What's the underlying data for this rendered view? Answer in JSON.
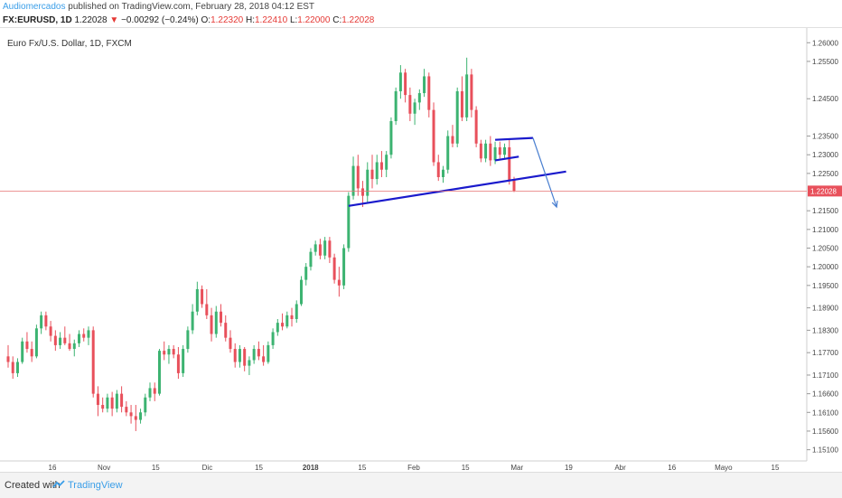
{
  "header": {
    "author": "Audiomercados",
    "published": "published on TradingView.com, February 28, 2018 04:12 EST",
    "symbol": "FX:EURUSD, 1D",
    "last": "1.22028",
    "arrow": "▼",
    "change": "−0.00292 (−0.24%)",
    "o_label": "O:",
    "o_val": "1.22320",
    "h_label": "H:",
    "h_val": "1.22410",
    "l_label": "L:",
    "l_val": "1.22000",
    "c_label": "C:",
    "c_val": "1.22028"
  },
  "footer": {
    "created": "Created with",
    "brand": "TradingView"
  },
  "colors": {
    "up": "#3cb371",
    "down": "#e8505b",
    "trend": "#1a1acc",
    "projection": "#4a7fd0",
    "price_line": "#e57373",
    "label_bg": "#e8505b"
  },
  "chart_data": {
    "type": "candlestick",
    "title": "Euro Fx/U.S. Dollar, 1D, FXCM",
    "ylim": [
      1.148,
      1.262
    ],
    "y_ticks": [
      "1.26000",
      "1.25500",
      "1.24500",
      "1.23500",
      "1.23000",
      "1.22500",
      "1.21500",
      "1.21000",
      "1.20500",
      "1.20000",
      "1.19500",
      "1.18900",
      "1.18300",
      "1.17700",
      "1.17100",
      "1.16600",
      "1.16100",
      "1.15600",
      "1.15100"
    ],
    "x_ticks": [
      "16",
      "Nov",
      "15",
      "Dic",
      "15",
      "2018",
      "15",
      "Feb",
      "15",
      "Mar",
      "19",
      "Abr",
      "16",
      "Mayo",
      "15"
    ],
    "last_price": "1.22028",
    "last_price_value": 1.22028,
    "candles": [
      [
        1.176,
        1.179,
        1.173,
        1.1745
      ],
      [
        1.1745,
        1.176,
        1.17,
        1.1715
      ],
      [
        1.1715,
        1.1755,
        1.1705,
        1.1745
      ],
      [
        1.1745,
        1.181,
        1.174,
        1.18
      ],
      [
        1.18,
        1.1825,
        1.177,
        1.178
      ],
      [
        1.178,
        1.18,
        1.1745,
        1.176
      ],
      [
        1.176,
        1.1845,
        1.1755,
        1.1835
      ],
      [
        1.1835,
        1.188,
        1.182,
        1.187
      ],
      [
        1.187,
        1.188,
        1.183,
        1.184
      ],
      [
        1.184,
        1.1855,
        1.18,
        1.1815
      ],
      [
        1.1815,
        1.183,
        1.1775,
        1.179
      ],
      [
        1.179,
        1.1825,
        1.178,
        1.181
      ],
      [
        1.181,
        1.184,
        1.179,
        1.1795
      ],
      [
        1.1795,
        1.182,
        1.1775,
        1.178
      ],
      [
        1.178,
        1.1805,
        1.176,
        1.1795
      ],
      [
        1.1795,
        1.183,
        1.1785,
        1.182
      ],
      [
        1.182,
        1.1835,
        1.18,
        1.181
      ],
      [
        1.181,
        1.184,
        1.179,
        1.183
      ],
      [
        1.183,
        1.184,
        1.165,
        1.166
      ],
      [
        1.166,
        1.168,
        1.16,
        1.163
      ],
      [
        1.163,
        1.165,
        1.161,
        1.162
      ],
      [
        1.162,
        1.166,
        1.161,
        1.165
      ],
      [
        1.165,
        1.1665,
        1.16,
        1.162
      ],
      [
        1.162,
        1.167,
        1.161,
        1.166
      ],
      [
        1.166,
        1.168,
        1.161,
        1.1625
      ],
      [
        1.1625,
        1.164,
        1.16,
        1.161
      ],
      [
        1.161,
        1.163,
        1.158,
        1.16
      ],
      [
        1.16,
        1.163,
        1.156,
        1.159
      ],
      [
        1.159,
        1.162,
        1.158,
        1.161
      ],
      [
        1.161,
        1.166,
        1.16,
        1.165
      ],
      [
        1.165,
        1.169,
        1.164,
        1.1675
      ],
      [
        1.1675,
        1.169,
        1.164,
        1.166
      ],
      [
        1.166,
        1.178,
        1.1655,
        1.1775
      ],
      [
        1.1775,
        1.18,
        1.175,
        1.1765
      ],
      [
        1.1765,
        1.179,
        1.174,
        1.178
      ],
      [
        1.178,
        1.179,
        1.1755,
        1.1765
      ],
      [
        1.1765,
        1.1785,
        1.17,
        1.1715
      ],
      [
        1.1715,
        1.179,
        1.1705,
        1.178
      ],
      [
        1.178,
        1.184,
        1.177,
        1.183
      ],
      [
        1.183,
        1.19,
        1.182,
        1.188
      ],
      [
        1.188,
        1.196,
        1.187,
        1.194
      ],
      [
        1.194,
        1.195,
        1.189,
        1.19
      ],
      [
        1.19,
        1.194,
        1.186,
        1.187
      ],
      [
        1.187,
        1.189,
        1.18,
        1.182
      ],
      [
        1.182,
        1.1895,
        1.181,
        1.188
      ],
      [
        1.188,
        1.19,
        1.184,
        1.185
      ],
      [
        1.185,
        1.187,
        1.18,
        1.181
      ],
      [
        1.181,
        1.183,
        1.177,
        1.178
      ],
      [
        1.178,
        1.1795,
        1.173,
        1.1745
      ],
      [
        1.1745,
        1.179,
        1.173,
        1.178
      ],
      [
        1.178,
        1.1785,
        1.172,
        1.1735
      ],
      [
        1.1735,
        1.176,
        1.171,
        1.175
      ],
      [
        1.175,
        1.179,
        1.174,
        1.178
      ],
      [
        1.178,
        1.18,
        1.175,
        1.176
      ],
      [
        1.176,
        1.179,
        1.1735,
        1.1745
      ],
      [
        1.1745,
        1.18,
        1.174,
        1.179
      ],
      [
        1.179,
        1.1835,
        1.178,
        1.1825
      ],
      [
        1.1825,
        1.186,
        1.1815,
        1.185
      ],
      [
        1.185,
        1.1875,
        1.183,
        1.184
      ],
      [
        1.184,
        1.188,
        1.1835,
        1.187
      ],
      [
        1.187,
        1.189,
        1.184,
        1.186
      ],
      [
        1.186,
        1.191,
        1.185,
        1.19
      ],
      [
        1.19,
        1.1975,
        1.1895,
        1.1965
      ],
      [
        1.1965,
        1.201,
        1.195,
        1.2
      ],
      [
        1.2,
        1.205,
        1.199,
        1.204
      ],
      [
        1.204,
        1.207,
        1.203,
        1.206
      ],
      [
        1.206,
        1.2075,
        1.202,
        1.203
      ],
      [
        1.203,
        1.208,
        1.202,
        1.207
      ],
      [
        1.207,
        1.208,
        1.201,
        1.2025
      ],
      [
        1.2025,
        1.2035,
        1.1955,
        1.1965
      ],
      [
        1.1965,
        1.2,
        1.192,
        1.195
      ],
      [
        1.195,
        1.206,
        1.194,
        1.205
      ],
      [
        1.205,
        1.22,
        1.204,
        1.219
      ],
      [
        1.219,
        1.2295,
        1.218,
        1.227
      ],
      [
        1.227,
        1.23,
        1.219,
        1.221
      ],
      [
        1.221,
        1.223,
        1.216,
        1.219
      ],
      [
        1.219,
        1.228,
        1.217,
        1.226
      ],
      [
        1.226,
        1.23,
        1.221,
        1.2235
      ],
      [
        1.2235,
        1.23,
        1.222,
        1.228
      ],
      [
        1.228,
        1.231,
        1.224,
        1.226
      ],
      [
        1.226,
        1.231,
        1.224,
        1.23
      ],
      [
        1.23,
        1.24,
        1.229,
        1.239
      ],
      [
        1.239,
        1.248,
        1.238,
        1.247
      ],
      [
        1.247,
        1.254,
        1.245,
        1.252
      ],
      [
        1.252,
        1.253,
        1.244,
        1.246
      ],
      [
        1.246,
        1.248,
        1.239,
        1.241
      ],
      [
        1.241,
        1.245,
        1.238,
        1.244
      ],
      [
        1.244,
        1.2475,
        1.242,
        1.2465
      ],
      [
        1.2465,
        1.253,
        1.2455,
        1.251
      ],
      [
        1.251,
        1.252,
        1.24,
        1.242
      ],
      [
        1.242,
        1.244,
        1.227,
        1.228
      ],
      [
        1.228,
        1.23,
        1.223,
        1.224
      ],
      [
        1.224,
        1.227,
        1.2225,
        1.226
      ],
      [
        1.226,
        1.2365,
        1.225,
        1.235
      ],
      [
        1.235,
        1.238,
        1.232,
        1.233
      ],
      [
        1.233,
        1.248,
        1.232,
        1.247
      ],
      [
        1.247,
        1.251,
        1.239,
        1.24
      ],
      [
        1.24,
        1.256,
        1.239,
        1.2515
      ],
      [
        1.2515,
        1.253,
        1.24,
        1.242
      ],
      [
        1.242,
        1.243,
        1.232,
        1.233
      ],
      [
        1.233,
        1.234,
        1.228,
        1.229
      ],
      [
        1.229,
        1.234,
        1.228,
        1.233
      ],
      [
        1.233,
        1.235,
        1.227,
        1.2285
      ],
      [
        1.2285,
        1.2335,
        1.2275,
        1.232
      ],
      [
        1.232,
        1.2335,
        1.229,
        1.23
      ],
      [
        1.23,
        1.233,
        1.229,
        1.232
      ],
      [
        1.232,
        1.2341,
        1.222,
        1.2232
      ],
      [
        1.2232,
        1.2241,
        1.22,
        1.2203
      ]
    ],
    "annotations": [
      {
        "type": "line",
        "color": "#1a1acc",
        "points": [
          [
            1.2163,
            72
          ],
          [
            1.2255,
            118
          ]
        ]
      },
      {
        "type": "line",
        "color": "#1a1acc",
        "points": [
          [
            1.234,
            103
          ],
          [
            1.2345,
            111
          ]
        ]
      },
      {
        "type": "line",
        "color": "#1a1acc",
        "points": [
          [
            1.2285,
            103
          ],
          [
            1.2295,
            108
          ]
        ]
      },
      {
        "type": "arrow",
        "color": "#4a7fd0",
        "points": [
          [
            1.2345,
            111
          ],
          [
            1.216,
            116
          ]
        ]
      }
    ]
  }
}
